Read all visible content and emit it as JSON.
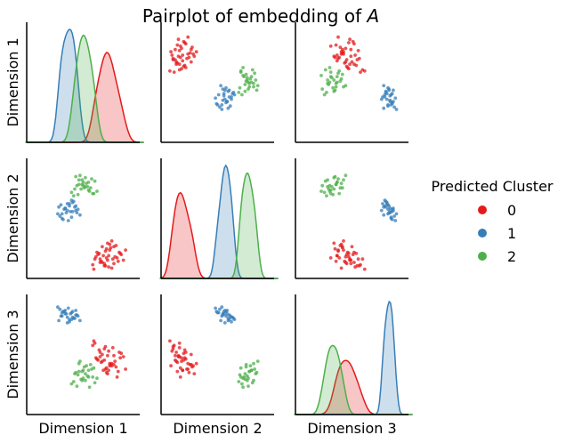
{
  "chart_data": {
    "type": "scatter",
    "title": "Pairplot of embedding of A",
    "title_prefix": "Pairplot of embedding of ",
    "title_italic": "A",
    "variables": [
      "Dimension 1",
      "Dimension 2",
      "Dimension 3"
    ],
    "diagonal": "kde",
    "axis_ticks_visible": false,
    "legend": {
      "title": "Predicted Cluster",
      "placement": "right",
      "entries": [
        {
          "label": "0",
          "color": "#e41a1c"
        },
        {
          "label": "1",
          "color": "#377eb8"
        },
        {
          "label": "2",
          "color": "#4daf4a"
        }
      ]
    },
    "series": [
      {
        "cluster": "0",
        "color": "#e41a1c",
        "dim1": [
          0.79,
          0.72,
          0.64,
          0.7,
          0.75,
          0.83,
          0.68,
          0.61,
          0.77,
          0.85,
          0.73,
          0.66,
          0.8,
          0.71,
          0.59,
          0.76,
          0.88,
          0.69,
          0.74,
          0.63,
          0.81,
          0.78,
          0.67,
          0.72,
          0.86,
          0.6,
          0.75,
          0.7,
          0.82,
          0.65,
          0.77,
          0.73,
          0.9,
          0.62,
          0.71,
          0.79,
          0.68,
          0.84,
          0.74,
          0.66
        ],
        "dim2": [
          0.1,
          0.15,
          0.18,
          0.08,
          0.22,
          0.12,
          0.25,
          0.14,
          0.06,
          0.19,
          0.28,
          0.11,
          0.16,
          0.21,
          0.09,
          0.24,
          0.13,
          0.17,
          0.07,
          0.2,
          0.26,
          0.14,
          0.12,
          0.23,
          0.18,
          0.05,
          0.27,
          0.1,
          0.15,
          0.19,
          0.3,
          0.13,
          0.22,
          0.16,
          0.08,
          0.25,
          0.11,
          0.2,
          0.17,
          0.14
        ],
        "dim3": [
          0.49,
          0.38,
          0.45,
          0.55,
          0.42,
          0.35,
          0.5,
          0.6,
          0.4,
          0.47,
          0.33,
          0.52,
          0.44,
          0.37,
          0.58,
          0.41,
          0.48,
          0.36,
          0.53,
          0.46,
          0.39,
          0.56,
          0.43,
          0.34,
          0.51,
          0.62,
          0.4,
          0.45,
          0.3,
          0.54,
          0.42,
          0.49,
          0.37,
          0.47,
          0.57,
          0.41,
          0.44,
          0.52,
          0.36,
          0.48
        ]
      },
      {
        "cluster": "1",
        "color": "#377eb8",
        "dim1": [
          0.34,
          0.42,
          0.28,
          0.37,
          0.45,
          0.31,
          0.39,
          0.26,
          0.43,
          0.35,
          0.3,
          0.4,
          0.33,
          0.47,
          0.29,
          0.38,
          0.36,
          0.41,
          0.32,
          0.44,
          0.27,
          0.39,
          0.35,
          0.43,
          0.3,
          0.37,
          0.33,
          0.4
        ],
        "dim2": [
          0.55,
          0.6,
          0.52,
          0.63,
          0.58,
          0.49,
          0.66,
          0.54,
          0.61,
          0.57,
          0.5,
          0.64,
          0.59,
          0.53,
          0.62,
          0.56,
          0.48,
          0.65,
          0.58,
          0.55,
          0.6,
          0.51,
          0.63,
          0.57,
          0.54,
          0.61,
          0.59,
          0.56
        ],
        "dim3": [
          0.86,
          0.82,
          0.9,
          0.79,
          0.84,
          0.88,
          0.81,
          0.92,
          0.85,
          0.78,
          0.87,
          0.83,
          0.89,
          0.8,
          0.84,
          0.86,
          0.91,
          0.82,
          0.88,
          0.85,
          0.8,
          0.87,
          0.83,
          0.89,
          0.84,
          0.81,
          0.86,
          0.88
        ]
      },
      {
        "cluster": "2",
        "color": "#4daf4a",
        "dim1": [
          0.46,
          0.55,
          0.49,
          0.6,
          0.44,
          0.52,
          0.57,
          0.41,
          0.5,
          0.63,
          0.47,
          0.54,
          0.39,
          0.58,
          0.48,
          0.53,
          0.45,
          0.61,
          0.51,
          0.43,
          0.56,
          0.49,
          0.59,
          0.46,
          0.52,
          0.42,
          0.55,
          0.5
        ],
        "dim2": [
          0.8,
          0.75,
          0.84,
          0.72,
          0.79,
          0.86,
          0.77,
          0.7,
          0.82,
          0.74,
          0.88,
          0.78,
          0.73,
          0.85,
          0.76,
          0.81,
          0.71,
          0.83,
          0.77,
          0.87,
          0.74,
          0.8,
          0.72,
          0.84,
          0.78,
          0.76,
          0.82,
          0.79
        ],
        "dim3": [
          0.35,
          0.3,
          0.27,
          0.38,
          0.22,
          0.33,
          0.41,
          0.26,
          0.36,
          0.29,
          0.44,
          0.31,
          0.24,
          0.37,
          0.28,
          0.4,
          0.32,
          0.25,
          0.39,
          0.34,
          0.21,
          0.35,
          0.3,
          0.42,
          0.27,
          0.33,
          0.36,
          0.29
        ]
      }
    ]
  }
}
